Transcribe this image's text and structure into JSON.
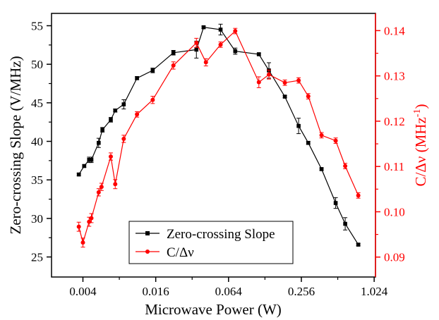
{
  "chart_data": {
    "type": "line",
    "x_scale": "log2",
    "xlabel": "Microwave Power (W)",
    "ylabel_left": "Zero-crossing Slope (V/MHz)",
    "ylabel_right_main": "C/Δν (MHz",
    "ylabel_right_sup": "-1",
    "ylabel_right_end": ")",
    "xlim": [
      0.0022,
      1.05
    ],
    "ylim_left": [
      22.4,
      56.6
    ],
    "ylim_right": [
      0.0856,
      0.1438
    ],
    "x_ticks": [
      0.004,
      0.016,
      0.064,
      0.256,
      1.024
    ],
    "x_tick_labels": [
      "0.004",
      "0.016",
      "0.064",
      "0.256",
      "1.024"
    ],
    "y_left_ticks": [
      25,
      30,
      35,
      40,
      45,
      50,
      55
    ],
    "y_left_tick_labels": [
      "25",
      "30",
      "35",
      "40",
      "45",
      "50",
      "55"
    ],
    "y_right_ticks": [
      0.09,
      0.1,
      0.11,
      0.12,
      0.13,
      0.14
    ],
    "y_right_tick_labels": [
      "0.09",
      "0.10",
      "0.11",
      "0.12",
      "0.13",
      "0.14"
    ],
    "grid": false,
    "legend_position": "bottom-left",
    "series": [
      {
        "name": "Zero-crossing Slope",
        "axis": "left",
        "color": "#000000",
        "marker": "square",
        "x": [
          0.0037,
          0.0041,
          0.0045,
          0.0047,
          0.0054,
          0.0058,
          0.0068,
          0.0074,
          0.0087,
          0.0112,
          0.0151,
          0.0224,
          0.0347,
          0.0398,
          0.055,
          0.0727,
          0.114,
          0.138,
          0.187,
          0.243,
          0.292,
          0.376,
          0.492,
          0.59,
          0.757
        ],
        "y": [
          35.7,
          36.8,
          37.6,
          37.6,
          39.8,
          41.5,
          42.8,
          44.0,
          44.8,
          48.2,
          49.2,
          51.5,
          51.9,
          54.8,
          54.5,
          51.7,
          51.3,
          49.2,
          45.8,
          42.0,
          39.8,
          36.4,
          32.0,
          29.3,
          26.6
        ],
        "err": [
          0.15,
          0.15,
          0.35,
          0.35,
          0.6,
          0.3,
          0.3,
          0.2,
          0.6,
          0.2,
          0.3,
          0.3,
          1.1,
          0.15,
          0.7,
          0.4,
          0.15,
          1.0,
          0.15,
          1.0,
          0.2,
          0.15,
          0.7,
          0.8,
          0.15
        ]
      },
      {
        "name": "C/Δν",
        "axis": "right",
        "color": "#ff0000",
        "marker": "circle",
        "x": [
          0.0037,
          0.004,
          0.0045,
          0.0047,
          0.0054,
          0.0057,
          0.0068,
          0.0074,
          0.0087,
          0.0112,
          0.0151,
          0.0224,
          0.0347,
          0.0416,
          0.055,
          0.0727,
          0.114,
          0.138,
          0.187,
          0.243,
          0.292,
          0.376,
          0.492,
          0.59,
          0.757
        ],
        "y": [
          0.0967,
          0.0932,
          0.0978,
          0.0986,
          0.1043,
          0.1055,
          0.1122,
          0.1061,
          0.1161,
          0.1215,
          0.1247,
          0.1323,
          0.1373,
          0.133,
          0.1369,
          0.1399,
          0.1286,
          0.1303,
          0.1285,
          0.129,
          0.1255,
          0.1169,
          0.1157,
          0.1101,
          0.1036
        ],
        "err": [
          0.001,
          0.001,
          0.001,
          0.001,
          0.0008,
          0.0008,
          0.0008,
          0.001,
          0.0008,
          0.0006,
          0.0008,
          0.0008,
          0.001,
          0.0008,
          0.0006,
          0.0006,
          0.0012,
          0.001,
          0.0006,
          0.0006,
          0.0006,
          0.0006,
          0.0006,
          0.0006,
          0.0006
        ]
      }
    ]
  }
}
